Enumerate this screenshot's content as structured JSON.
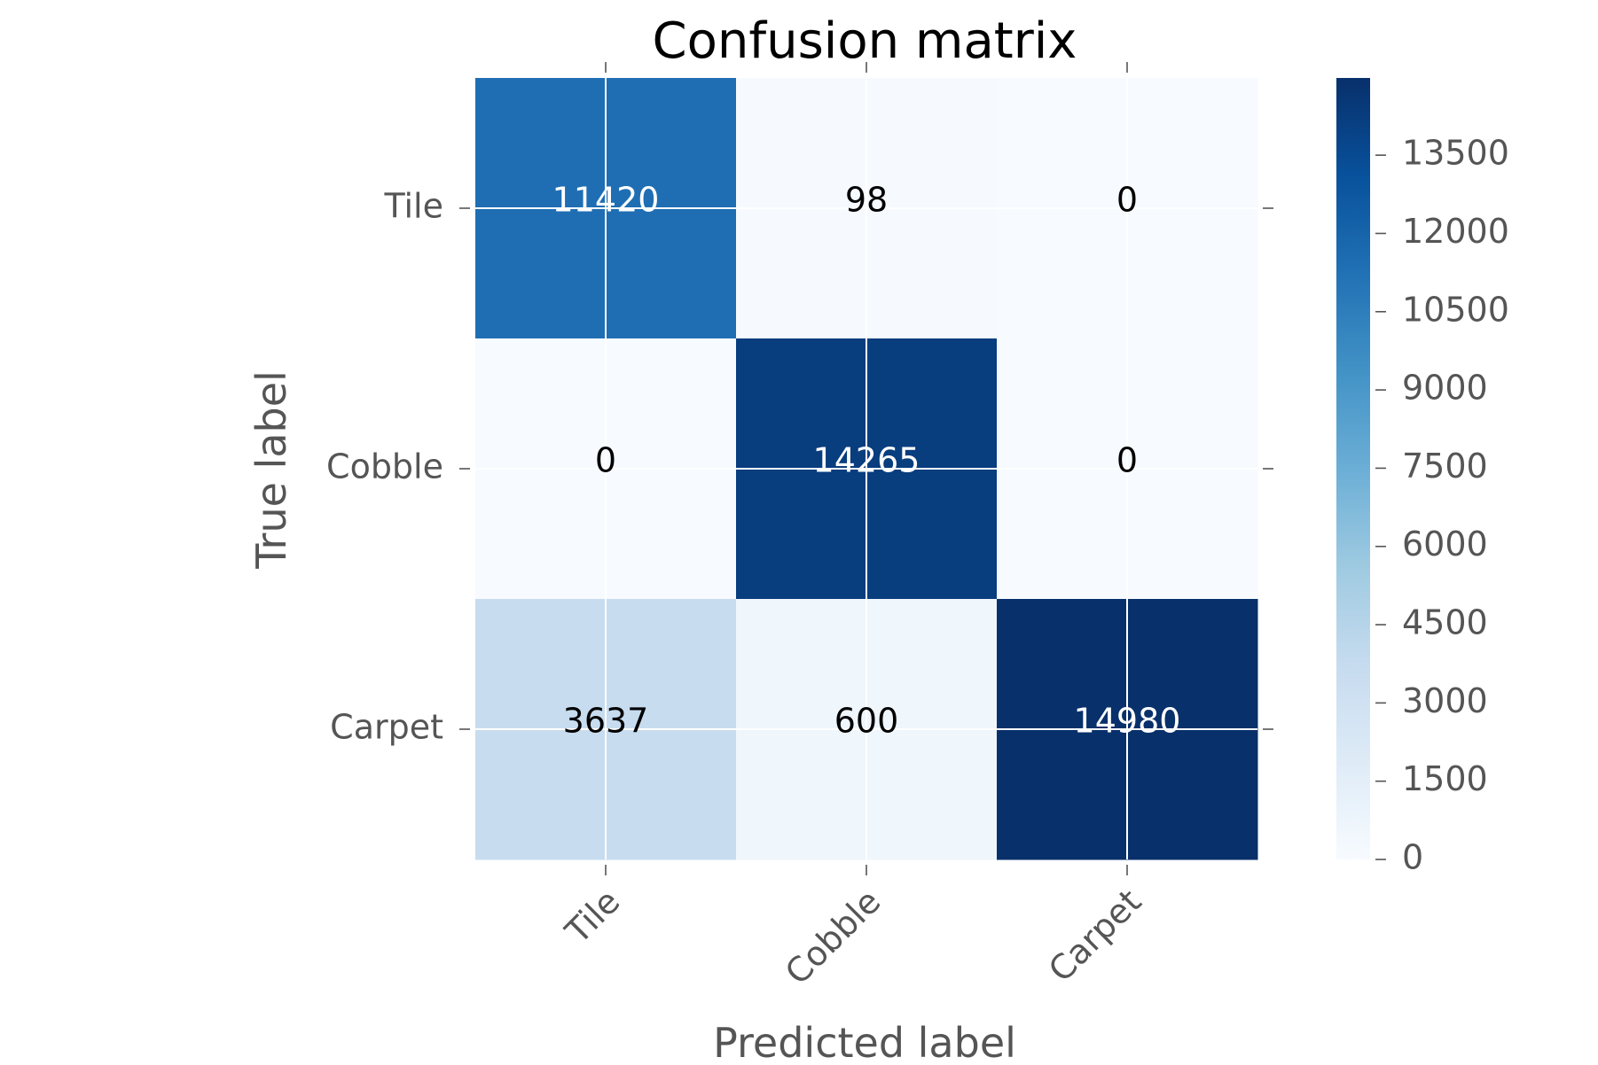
{
  "chart_data": {
    "type": "heatmap",
    "title": "Confusion matrix",
    "xlabel": "Predicted label",
    "ylabel": "True label",
    "x_categories": [
      "Tile",
      "Cobble",
      "Carpet"
    ],
    "y_categories": [
      "Tile",
      "Cobble",
      "Carpet"
    ],
    "matrix": [
      [
        11420,
        98,
        0
      ],
      [
        0,
        14265,
        0
      ],
      [
        3637,
        600,
        14980
      ]
    ],
    "colormap": "Blues",
    "color_range": [
      0,
      14980
    ],
    "colorbar_ticks": [
      0,
      1500,
      3000,
      4500,
      6000,
      7500,
      9000,
      10500,
      12000,
      13500
    ],
    "grid": true,
    "colors": {
      "cmap": [
        "#f7fbff",
        "#deebf7",
        "#c6dbef",
        "#9ecae1",
        "#6baed6",
        "#4292c6",
        "#2171b5",
        "#08519c",
        "#08306b"
      ],
      "text_light": "#ffffff",
      "text_dark": "#000000",
      "axis_text": "#555555"
    }
  }
}
